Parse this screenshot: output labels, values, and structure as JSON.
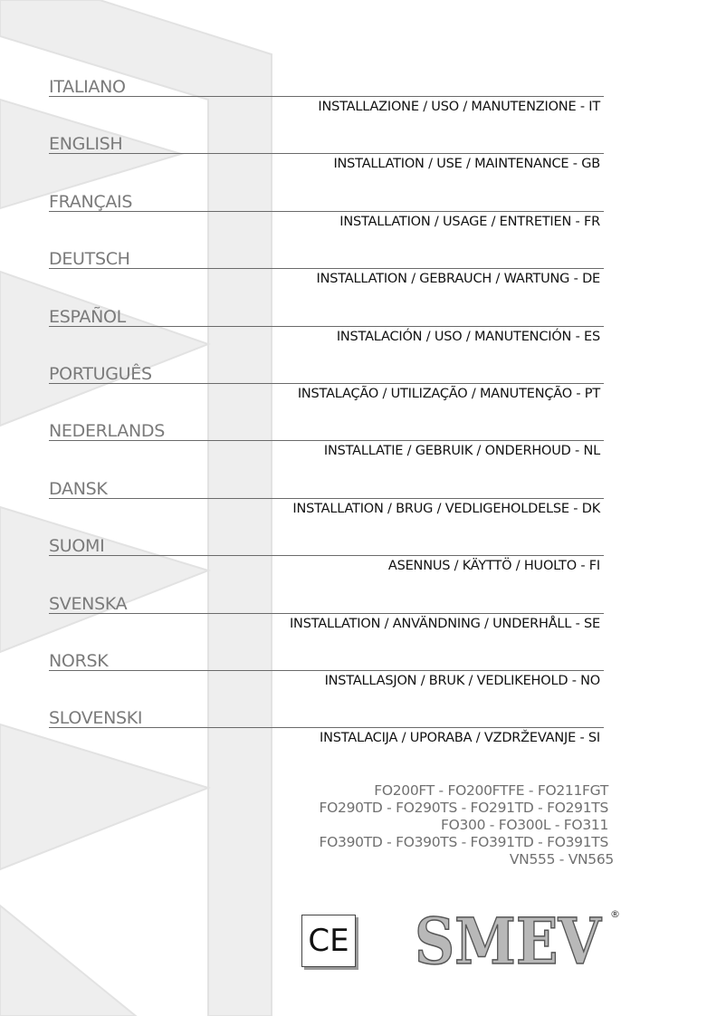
{
  "languages": [
    {
      "name": "ITALIANO",
      "subtitle": "INSTALLAZIONE / USO / MANUTENZIONE - IT"
    },
    {
      "name": "ENGLISH",
      "subtitle": "INSTALLATION / USE / MAINTENANCE - GB"
    },
    {
      "name": "FRANÇAIS",
      "subtitle": "INSTALLATION / USAGE / ENTRETIEN - FR"
    },
    {
      "name": "DEUTSCH",
      "subtitle": "INSTALLATION / GEBRAUCH / WARTUNG - DE"
    },
    {
      "name": "ESPAÑOL",
      "subtitle": "INSTALACIÓN / USO / MANUTENCIÓN - ES"
    },
    {
      "name": "PORTUGUÊS",
      "subtitle": "INSTALAÇÃO / UTILIZAÇÃO / MANUTENÇÃO - PT"
    },
    {
      "name": "NEDERLANDS",
      "subtitle": "INSTALLATIE / GEBRUIK / ONDERHOUD - NL"
    },
    {
      "name": "DANSK",
      "subtitle": "INSTALLATION / BRUG / VEDLIGEHOLDELSE - DK"
    },
    {
      "name": "SUOMI",
      "subtitle": "ASENNUS / KÄYTTÖ / HUOLTO - FI"
    },
    {
      "name": "SVENSKA",
      "subtitle": "INSTALLATION / ANVÄNDNING / UNDERHÅLL - SE"
    },
    {
      "name": "NORSK",
      "subtitle": "INSTALLASJON / BRUK / VEDLIKEHOLD - NO"
    },
    {
      "name": "SLOVENSKI",
      "subtitle": "INSTALACIJA / UPORABA / VZDRŽEVANJE - SI"
    }
  ],
  "models": [
    "FO200FT - FO200FTFE - FO211FGT",
    "FO290TD - FO290TS - FO291TD - FO291TS",
    "FO300 - FO300L - FO311",
    "FO390TD - FO390TS - FO391TD - FO391TS",
    "VN555 - VN565"
  ],
  "ce_mark": "CE",
  "brand": {
    "name": "SMEV",
    "registered": "®"
  },
  "colors": {
    "heading": "#7a7a7a",
    "rule": "#6a6a6a",
    "watermark": "#ececec"
  }
}
